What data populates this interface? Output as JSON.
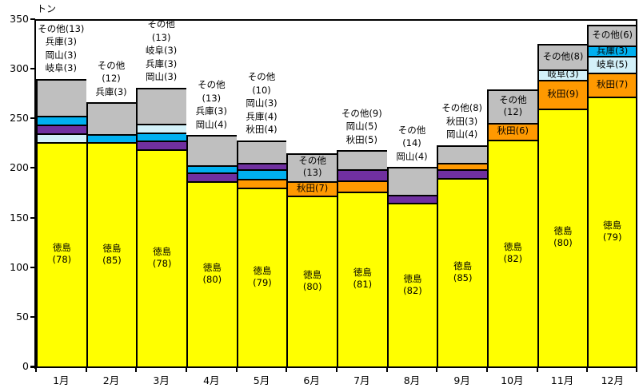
{
  "chart_data": {
    "type": "bar",
    "stacked": true,
    "unit_label": "トン",
    "ylim": [
      0,
      350
    ],
    "yticks": [
      0,
      50,
      100,
      150,
      200,
      250,
      300,
      350
    ],
    "grid": "off",
    "legend": "none (segments labeled directly; labels in parentheses are percent shares)",
    "series": [
      {
        "key": "tokushima",
        "name": "徳島",
        "color": "#FFFF00"
      },
      {
        "key": "akita",
        "name": "秋田",
        "color": "#FF9900"
      },
      {
        "key": "hyogo",
        "name": "兵庫",
        "color": "#00B0F0"
      },
      {
        "key": "okayama",
        "name": "岡山",
        "color": "#7030A0"
      },
      {
        "key": "gifu",
        "name": "岐阜",
        "color": "#D3F1F9"
      },
      {
        "key": "other",
        "name": "その他",
        "color": "#BFBFBF"
      }
    ],
    "months": [
      {
        "label": "1月",
        "total_tons": 290,
        "segments": [
          {
            "key": "tokushima",
            "name": "徳島",
            "pct": 78,
            "label_lines": [
              "徳島",
              "(78)"
            ]
          },
          {
            "key": "gifu",
            "name": "岐阜",
            "pct": 3
          },
          {
            "key": "okayama",
            "name": "岡山",
            "pct": 3
          },
          {
            "key": "hyogo",
            "name": "兵庫",
            "pct": 3
          },
          {
            "key": "other",
            "name": "その他",
            "pct": 13
          }
        ],
        "callout_lines": [
          "その他(13)",
          "兵庫(3)",
          "岡山(3)",
          "岐阜(3)"
        ]
      },
      {
        "label": "2月",
        "total_tons": 266,
        "segments": [
          {
            "key": "tokushima",
            "name": "徳島",
            "pct": 85,
            "label_lines": [
              "徳島",
              "(85)"
            ]
          },
          {
            "key": "hyogo",
            "name": "兵庫",
            "pct": 3
          },
          {
            "key": "other",
            "name": "その他",
            "pct": 12
          }
        ],
        "callout_lines": [
          "その他",
          "(12)",
          "兵庫(3)"
        ]
      },
      {
        "label": "3月",
        "total_tons": 281,
        "segments": [
          {
            "key": "tokushima",
            "name": "徳島",
            "pct": 78,
            "label_lines": [
              "徳島",
              "(78)"
            ]
          },
          {
            "key": "okayama",
            "name": "岡山",
            "pct": 3
          },
          {
            "key": "hyogo",
            "name": "兵庫",
            "pct": 3
          },
          {
            "key": "gifu",
            "name": "岐阜",
            "pct": 3
          },
          {
            "key": "other",
            "name": "その他",
            "pct": 13
          }
        ],
        "callout_lines": [
          "その他",
          "(13)",
          "岐阜(3)",
          "兵庫(3)",
          "岡山(3)"
        ]
      },
      {
        "label": "4月",
        "total_tons": 233,
        "segments": [
          {
            "key": "tokushima",
            "name": "徳島",
            "pct": 80,
            "label_lines": [
              "徳島",
              "(80)"
            ]
          },
          {
            "key": "okayama",
            "name": "岡山",
            "pct": 4
          },
          {
            "key": "hyogo",
            "name": "兵庫",
            "pct": 3
          },
          {
            "key": "other",
            "name": "その他",
            "pct": 13
          }
        ],
        "callout_lines": [
          "その他",
          "(13)",
          "兵庫(3)",
          "岡山(4)"
        ]
      },
      {
        "label": "5月",
        "total_tons": 228,
        "segments": [
          {
            "key": "tokushima",
            "name": "徳島",
            "pct": 79,
            "label_lines": [
              "徳島",
              "(79)"
            ]
          },
          {
            "key": "akita",
            "name": "秋田",
            "pct": 4
          },
          {
            "key": "hyogo",
            "name": "兵庫",
            "pct": 4
          },
          {
            "key": "okayama",
            "name": "岡山",
            "pct": 3
          },
          {
            "key": "other",
            "name": "その他",
            "pct": 10
          }
        ],
        "callout_lines": [
          "その他",
          "(10)",
          "岡山(3)",
          "兵庫(4)",
          "秋田(4)"
        ]
      },
      {
        "label": "6月",
        "total_tons": 215,
        "segments": [
          {
            "key": "tokushima",
            "name": "徳島",
            "pct": 80,
            "label_lines": [
              "徳島",
              "(80)"
            ]
          },
          {
            "key": "akita",
            "name": "秋田",
            "pct": 7,
            "label_lines": [
              "秋田(7)"
            ]
          },
          {
            "key": "other",
            "name": "その他",
            "pct": 13,
            "label_lines": [
              "その他",
              "(13)"
            ]
          }
        ]
      },
      {
        "label": "7月",
        "total_tons": 218,
        "segments": [
          {
            "key": "tokushima",
            "name": "徳島",
            "pct": 81,
            "label_lines": [
              "徳島",
              "(81)"
            ]
          },
          {
            "key": "akita",
            "name": "秋田",
            "pct": 5
          },
          {
            "key": "okayama",
            "name": "岡山",
            "pct": 5
          },
          {
            "key": "other",
            "name": "その他",
            "pct": 9
          }
        ],
        "callout_lines": [
          "その他(9)",
          "岡山(5)",
          "秋田(5)"
        ]
      },
      {
        "label": "8月",
        "total_tons": 201,
        "segments": [
          {
            "key": "tokushima",
            "name": "徳島",
            "pct": 82,
            "label_lines": [
              "徳島",
              "(82)"
            ]
          },
          {
            "key": "okayama",
            "name": "岡山",
            "pct": 4
          },
          {
            "key": "other",
            "name": "その他",
            "pct": 14
          }
        ],
        "callout_lines": [
          "その他",
          "(14)",
          "岡山(4)"
        ]
      },
      {
        "label": "9月",
        "total_tons": 223,
        "segments": [
          {
            "key": "tokushima",
            "name": "徳島",
            "pct": 85,
            "label_lines": [
              "徳島",
              "(85)"
            ]
          },
          {
            "key": "okayama",
            "name": "岡山",
            "pct": 4
          },
          {
            "key": "akita",
            "name": "秋田",
            "pct": 3
          },
          {
            "key": "other",
            "name": "その他",
            "pct": 8
          }
        ],
        "callout_lines": [
          "その他(8)",
          "秋田(3)",
          "岡山(4)"
        ]
      },
      {
        "label": "10月",
        "total_tons": 279,
        "segments": [
          {
            "key": "tokushima",
            "name": "徳島",
            "pct": 82,
            "label_lines": [
              "徳島",
              "(82)"
            ]
          },
          {
            "key": "akita",
            "name": "秋田",
            "pct": 6,
            "label_lines": [
              "秋田(6)"
            ]
          },
          {
            "key": "other",
            "name": "その他",
            "pct": 12,
            "label_lines": [
              "その他",
              "(12)"
            ]
          }
        ]
      },
      {
        "label": "11月",
        "total_tons": 325,
        "segments": [
          {
            "key": "tokushima",
            "name": "徳島",
            "pct": 80,
            "label_lines": [
              "徳島",
              "(80)"
            ]
          },
          {
            "key": "akita",
            "name": "秋田",
            "pct": 9,
            "label_lines": [
              "秋田(9)"
            ]
          },
          {
            "key": "gifu",
            "name": "岐阜",
            "pct": 3,
            "label_lines": [
              "岐阜(3)"
            ]
          },
          {
            "key": "other",
            "name": "その他",
            "pct": 8,
            "label_lines": [
              "その他(8)"
            ]
          }
        ]
      },
      {
        "label": "12月",
        "total_tons": 344,
        "segments": [
          {
            "key": "tokushima",
            "name": "徳島",
            "pct": 79,
            "label_lines": [
              "徳島",
              "(79)"
            ]
          },
          {
            "key": "akita",
            "name": "秋田",
            "pct": 7,
            "label_lines": [
              "秋田(7)"
            ]
          },
          {
            "key": "gifu",
            "name": "岐阜",
            "pct": 5,
            "label_lines": [
              "岐阜(5)"
            ]
          },
          {
            "key": "hyogo",
            "name": "兵庫",
            "pct": 3,
            "label_lines": [
              "兵庫(3)"
            ]
          },
          {
            "key": "other",
            "name": "その他",
            "pct": 6,
            "label_lines": [
              "その他(6)"
            ]
          }
        ]
      }
    ]
  }
}
